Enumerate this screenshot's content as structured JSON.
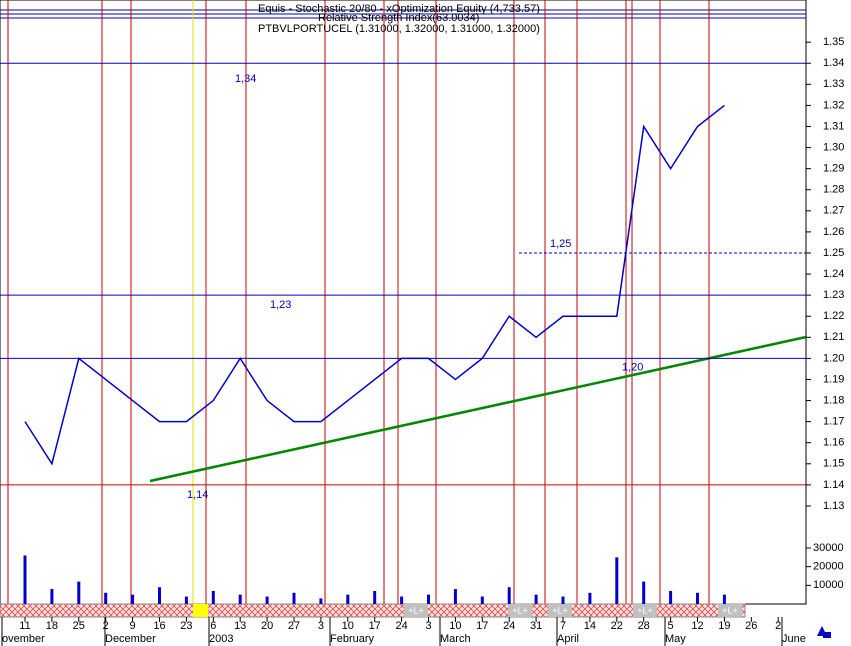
{
  "chart_data": [
    {
      "type": "line",
      "title": "Equis - Stochastic 20/80 - xOptimization Equity (4,733.57)",
      "subtitle": "Relative Strength Index(63.0034)",
      "instrument": "PTBVLPORTUCEL (1.31000, 1.32000, 1.31000, 1.32000)",
      "categories": [
        "11",
        "18",
        "25",
        "2",
        "9",
        "16",
        "23",
        "6",
        "13",
        "20",
        "27",
        "3",
        "10",
        "17",
        "24",
        "3",
        "10",
        "17",
        "24",
        "31",
        "7",
        "14",
        "22",
        "28",
        "5",
        "12",
        "19",
        "26",
        "2"
      ],
      "months": [
        "ovember",
        "December",
        "2003",
        "February",
        "March",
        "April",
        "May",
        "June"
      ],
      "series": [
        {
          "name": "PTBVLPORTUCEL",
          "color": "#0000cc",
          "values": [
            1.17,
            1.15,
            1.2,
            1.19,
            1.18,
            1.17,
            1.17,
            1.18,
            1.2,
            1.18,
            1.17,
            1.17,
            1.18,
            1.19,
            1.2,
            1.2,
            1.19,
            1.2,
            1.22,
            1.21,
            1.22,
            1.22,
            1.22,
            1.31,
            1.29,
            1.31,
            1.32,
            null,
            null
          ]
        }
      ],
      "ylim": [
        1.125,
        1.37
      ],
      "yticks": [
        1.13,
        1.14,
        1.15,
        1.16,
        1.17,
        1.18,
        1.19,
        {
          "value": 1.2,
          "label": "1.20"
        },
        1.21,
        1.22,
        1.23,
        1.24,
        1.25,
        1.26,
        1.27,
        1.28,
        1.29,
        {
          "value": 1.3,
          "label": "1.30"
        },
        1.31,
        1.32,
        1.33,
        1.34,
        1.35
      ],
      "annotations": [
        {
          "value": 1.34,
          "label": "1,34"
        },
        {
          "value": 1.25,
          "label": "1,25"
        },
        {
          "value": 1.23,
          "label": "1,23"
        },
        {
          "value": 1.2,
          "label": "1,20"
        },
        {
          "value": 1.14,
          "label": "1,14"
        }
      ],
      "bottom_markers": [
        "+L+",
        "+L+",
        "+L+",
        "+L+",
        "+L+"
      ]
    },
    {
      "type": "bar",
      "categories": [
        "11",
        "18",
        "25",
        "2",
        "9",
        "16",
        "23",
        "6",
        "13",
        "20",
        "27",
        "3",
        "10",
        "17",
        "24",
        "3",
        "10",
        "17",
        "24",
        "31",
        "7",
        "14",
        "22",
        "28",
        "5",
        "12",
        "19",
        "26",
        "2"
      ],
      "values": [
        26000,
        8000,
        12000,
        6000,
        5000,
        9000,
        4000,
        7000,
        5000,
        4000,
        6000,
        3000,
        5000,
        7000,
        4000,
        5000,
        8000,
        4000,
        9000,
        5000,
        4000,
        6000,
        25000,
        12000,
        7000,
        6000,
        5000,
        null,
        null
      ],
      "color": "#0000cc",
      "ylim": [
        0,
        30000
      ],
      "yticks": [
        10000,
        20000,
        30000
      ]
    }
  ]
}
